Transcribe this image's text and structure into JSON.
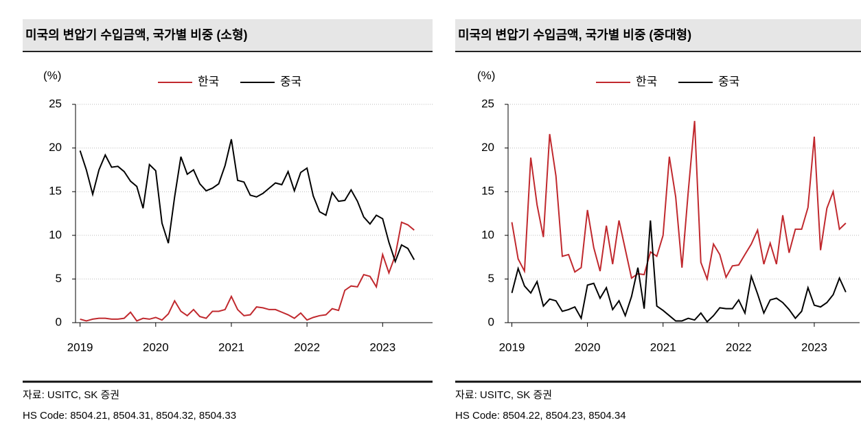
{
  "chart_data": [
    {
      "type": "line",
      "title": "미국의 변압기 수입금액, 국가별 비중 (소형)",
      "y_label": "(%)",
      "source": "자료: USITC, SK 증권",
      "note": "HS Code: 8504.21, 8504.31, 8504.32, 8504.33",
      "x": [
        2019,
        2019.083,
        2019.167,
        2019.25,
        2019.333,
        2019.417,
        2019.5,
        2019.583,
        2019.667,
        2019.75,
        2019.833,
        2019.917,
        2020,
        2020.083,
        2020.167,
        2020.25,
        2020.333,
        2020.417,
        2020.5,
        2020.583,
        2020.667,
        2020.75,
        2020.833,
        2020.917,
        2021,
        2021.083,
        2021.167,
        2021.25,
        2021.333,
        2021.417,
        2021.5,
        2021.583,
        2021.667,
        2021.75,
        2021.833,
        2021.917,
        2022,
        2022.083,
        2022.167,
        2022.25,
        2022.333,
        2022.417,
        2022.5,
        2022.583,
        2022.667,
        2022.75,
        2022.833,
        2022.917,
        2023,
        2023.083,
        2023.167,
        2023.25,
        2023.333,
        2023.417
      ],
      "series": [
        {
          "name": "한국",
          "color": "#c0282d",
          "values": [
            0.4,
            0.2,
            0.4,
            0.5,
            0.5,
            0.4,
            0.4,
            0.5,
            1.2,
            0.2,
            0.5,
            0.4,
            0.6,
            0.3,
            1.0,
            2.5,
            1.3,
            0.8,
            1.5,
            0.7,
            0.5,
            1.3,
            1.3,
            1.5,
            3.0,
            1.5,
            0.8,
            0.9,
            1.8,
            1.7,
            1.5,
            1.5,
            1.2,
            0.9,
            0.5,
            1.1,
            0.3,
            0.6,
            0.8,
            0.9,
            1.6,
            1.4,
            3.7,
            4.2,
            4.1,
            5.5,
            5.3,
            4.1,
            7.8,
            5.7,
            7.7,
            11.5,
            11.2,
            10.6
          ]
        },
        {
          "name": "중국",
          "color": "#000000",
          "values": [
            19.7,
            17.5,
            14.7,
            17.5,
            19.2,
            17.8,
            17.9,
            17.3,
            16.2,
            15.6,
            13.1,
            18.1,
            17.4,
            11.4,
            9.1,
            14.4,
            19.0,
            17.0,
            17.5,
            15.9,
            15.1,
            15.4,
            15.9,
            18.0,
            21.0,
            16.3,
            16.1,
            14.6,
            14.4,
            14.8,
            15.4,
            16.0,
            15.8,
            17.3,
            15.1,
            17.2,
            17.7,
            14.5,
            12.7,
            12.3,
            14.9,
            13.9,
            14.0,
            15.2,
            13.9,
            12.1,
            11.3,
            12.3,
            11.9,
            9.2,
            7.0,
            8.9,
            8.5,
            7.2
          ]
        }
      ],
      "xlim": [
        2018.94,
        2023.66
      ],
      "xticks": [
        2019,
        2020,
        2021,
        2022,
        2023
      ],
      "ylim": [
        0,
        25
      ],
      "yticks": [
        0,
        5,
        10,
        15,
        20,
        25
      ],
      "grid": true
    },
    {
      "type": "line",
      "title": "미국의 변압기 수입금액, 국가별 비중 (중대형)",
      "y_label": "(%)",
      "source": "자료: USITC, SK 증권",
      "note": "HS Code: 8504.22, 8504.23, 8504.34",
      "x": [
        2019,
        2019.083,
        2019.167,
        2019.25,
        2019.333,
        2019.417,
        2019.5,
        2019.583,
        2019.667,
        2019.75,
        2019.833,
        2019.917,
        2020,
        2020.083,
        2020.167,
        2020.25,
        2020.333,
        2020.417,
        2020.5,
        2020.583,
        2020.667,
        2020.75,
        2020.833,
        2020.917,
        2021,
        2021.083,
        2021.167,
        2021.25,
        2021.333,
        2021.417,
        2021.5,
        2021.583,
        2021.667,
        2021.75,
        2021.833,
        2021.917,
        2022,
        2022.083,
        2022.167,
        2022.25,
        2022.333,
        2022.417,
        2022.5,
        2022.583,
        2022.667,
        2022.75,
        2022.833,
        2022.917,
        2023,
        2023.083,
        2023.167,
        2023.25,
        2023.333,
        2023.417
      ],
      "series": [
        {
          "name": "한국",
          "color": "#c0282d",
          "values": [
            11.5,
            7.3,
            5.9,
            18.9,
            13.5,
            9.8,
            21.6,
            16.8,
            7.6,
            7.8,
            5.8,
            6.3,
            12.9,
            8.6,
            5.9,
            11.1,
            6.7,
            11.7,
            8.4,
            5.1,
            5.6,
            5.5,
            8.1,
            7.6,
            10.0,
            19.0,
            14.4,
            6.3,
            15.0,
            23.1,
            6.9,
            5.0,
            9.0,
            7.8,
            5.2,
            6.5,
            6.6,
            7.8,
            9.0,
            10.6,
            6.7,
            9.1,
            6.7,
            12.3,
            8.0,
            10.7,
            10.7,
            13.2,
            21.3,
            8.3,
            13.1,
            15.0,
            10.7,
            11.4
          ]
        },
        {
          "name": "중국",
          "color": "#000000",
          "values": [
            3.4,
            6.2,
            4.2,
            3.4,
            4.7,
            1.9,
            2.7,
            2.5,
            1.3,
            1.5,
            1.8,
            0.5,
            4.3,
            4.5,
            2.8,
            4.0,
            1.5,
            2.5,
            0.8,
            3.0,
            6.3,
            1.6,
            11.7,
            1.9,
            1.4,
            0.8,
            0.2,
            0.2,
            0.5,
            0.3,
            1.1,
            0.1,
            0.8,
            1.7,
            1.6,
            1.6,
            2.6,
            1.1,
            5.3,
            3.3,
            1.1,
            2.6,
            2.8,
            2.3,
            1.5,
            0.5,
            1.3,
            4.0,
            2.0,
            1.8,
            2.3,
            3.2,
            5.1,
            3.5
          ]
        }
      ],
      "xlim": [
        2018.95,
        2023.6
      ],
      "xticks": [
        2019,
        2020,
        2021,
        2022,
        2023
      ],
      "ylim": [
        0,
        25
      ],
      "yticks": [
        0,
        5,
        10,
        15,
        20,
        25
      ],
      "grid": true
    }
  ]
}
